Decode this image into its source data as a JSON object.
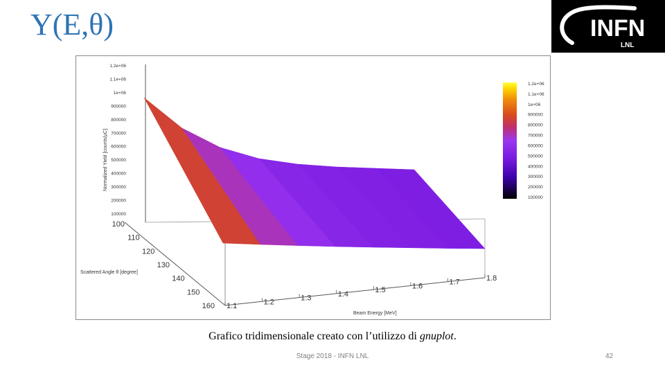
{
  "slide": {
    "title": "Y(E,θ)",
    "caption_main": "Grafico tridimensionale creato con l’utilizzo di ",
    "caption_italic": "gnuplot",
    "caption_end": ".",
    "footer": "Stage 2018 - INFN LNL",
    "page_number": "42"
  },
  "logo": {
    "text": "INFN",
    "subtext": "LNL",
    "background": "#000000"
  },
  "chart_data": {
    "type": "surface",
    "xlabel": "Beam Energy [MeV]",
    "ylabel": "Scattered Angle θ [degree]",
    "zlabel": "Normalized Yield [counts/μC]",
    "x_ticks": [
      "1.1",
      "1.2",
      "1.3",
      "1.4",
      "1.5",
      "1.6",
      "1.7",
      "1.8"
    ],
    "y_ticks": [
      "100",
      "110",
      "120",
      "130",
      "140",
      "150",
      "160"
    ],
    "z_ticks": [
      "1.2e+06",
      "1.1e+06",
      "1e+06",
      "900000",
      "800000",
      "700000",
      "600000",
      "500000",
      "400000",
      "300000",
      "200000",
      "100000"
    ],
    "colorbar_ticks": [
      "1.2e+06",
      "1.1e+06",
      "1e+06",
      "900000",
      "800000",
      "700000",
      "600000",
      "500000",
      "400000",
      "300000",
      "200000",
      "100000"
    ],
    "xlim": [
      1.1,
      1.8
    ],
    "ylim": [
      100,
      160
    ],
    "zlim": [
      100000,
      1200000
    ],
    "palette": [
      "#000000",
      "#3b00a8",
      "#7a1ae0",
      "#9a35f0",
      "#c0306a",
      "#d84a1a",
      "#f08a0a",
      "#ffd800",
      "#ffff40"
    ],
    "surface": {
      "angles": [
        100,
        160
      ],
      "energies": [
        1.1,
        1.2,
        1.3,
        1.4,
        1.5,
        1.6,
        1.7,
        1.8
      ],
      "yield_at_100deg": [
        1000000,
        780000,
        640000,
        560000,
        520000,
        500000,
        490000,
        480000
      ],
      "yield_at_160deg": [
        100000,
        90000,
        82000,
        75000,
        70000,
        66000,
        62000,
        60000
      ]
    },
    "grid": false
  }
}
